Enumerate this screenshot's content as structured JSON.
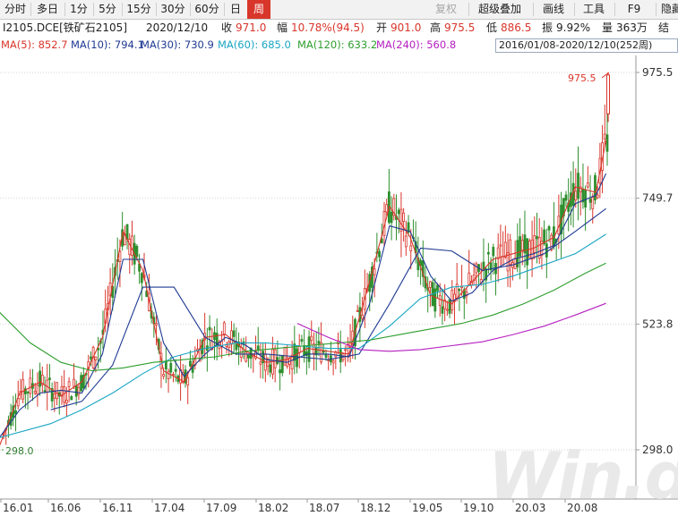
{
  "toolbar": {
    "items": [
      {
        "label": "分时",
        "active": false,
        "disabled": false
      },
      {
        "label": "多日",
        "active": false,
        "disabled": false
      },
      {
        "label": "1分",
        "active": false,
        "disabled": false
      },
      {
        "label": "5分",
        "active": false,
        "disabled": false
      },
      {
        "label": "15分",
        "active": false,
        "disabled": false
      },
      {
        "label": "30分",
        "active": false,
        "disabled": false
      },
      {
        "label": "60分",
        "active": false,
        "disabled": false
      },
      {
        "label": "日",
        "active": false,
        "disabled": false
      },
      {
        "label": "周",
        "active": true,
        "disabled": false
      }
    ],
    "right_items": [
      {
        "label": "复权",
        "disabled": true
      },
      {
        "label": "超级叠加",
        "disabled": false
      },
      {
        "label": "画线",
        "disabled": false
      },
      {
        "label": "工具",
        "disabled": false
      },
      {
        "label": "F9",
        "disabled": false
      },
      {
        "label": "隐藏",
        "disabled": false
      }
    ]
  },
  "info": {
    "symbol": "I2105.DCE[铁矿石2105]",
    "date": "2020/12/10",
    "close_label": "收",
    "close": "971.0",
    "change_label": "幅",
    "change": "10.78%(94.5)",
    "open_label": "开",
    "open": "901.0",
    "high_label": "高",
    "high": "975.5",
    "low_label": "低",
    "low": "886.5",
    "amp_label": "振",
    "amp": "9.92%",
    "vol_label": "量",
    "vol": "363万",
    "tail": "结"
  },
  "range_label": "2016/01/08-2020/12/10(252周)",
  "ma": [
    {
      "text": "MA(5): 852.7",
      "color": "#d9362b"
    },
    {
      "text": "MA(10): 794.1",
      "color": "#1f3a93"
    },
    {
      "text": "MA(30): 730.9",
      "color": "#1f3a93"
    },
    {
      "text": "MA(60): 685.0",
      "color": "#1aa6c4"
    },
    {
      "text": "MA(120): 633.2",
      "color": "#2e9e2e"
    },
    {
      "text": "MA(240): 560.8",
      "color": "#b51fc0"
    }
  ],
  "watermark": "Win.d",
  "chart_data": {
    "type": "line",
    "title": "",
    "xlabel": "",
    "ylabel": "",
    "grid": true,
    "x_ticks": [
      "16.01",
      "16.06",
      "16.11",
      "17.04",
      "17.09",
      "18.02",
      "18.07",
      "18.12",
      "19.05",
      "19.10",
      "20.03",
      "20.08"
    ],
    "y_ticks": [
      975.5,
      749.7,
      523.8,
      298.0
    ],
    "ylim": [
      298.0,
      975.5
    ],
    "annotations": [
      {
        "text": "975.5",
        "kind": "max",
        "x": "2020-12-10",
        "y": 975.5
      },
      {
        "text": "298.0",
        "kind": "min",
        "x": "2016-01-08",
        "y": 298.0
      }
    ],
    "series": [
      {
        "name": "MA(5)",
        "color": "#d9362b",
        "x": [
          "2016-01",
          "2016-03",
          "2016-05",
          "2016-07",
          "2016-09",
          "2016-11",
          "2017-01",
          "2017-03",
          "2017-05",
          "2017-07",
          "2017-09",
          "2017-11",
          "2018-01",
          "2018-03",
          "2018-05",
          "2018-07",
          "2018-09",
          "2018-11",
          "2019-01",
          "2019-03",
          "2019-05",
          "2019-07",
          "2019-09",
          "2019-11",
          "2020-01",
          "2020-03",
          "2020-05",
          "2020-07",
          "2020-09",
          "2020-11",
          "2020-12"
        ],
        "values": [
          305,
          400,
          420,
          395,
          420,
          500,
          690,
          620,
          440,
          420,
          500,
          505,
          475,
          455,
          460,
          480,
          475,
          470,
          600,
          735,
          680,
          575,
          560,
          600,
          640,
          650,
          660,
          680,
          770,
          760,
          853
        ]
      },
      {
        "name": "MA(10)",
        "color": "#1f3a93",
        "x": [
          "2016-01",
          "2016-03",
          "2016-05",
          "2016-07",
          "2016-09",
          "2016-11",
          "2017-01",
          "2017-03",
          "2017-05",
          "2017-07",
          "2017-09",
          "2017-11",
          "2018-01",
          "2018-03",
          "2018-05",
          "2018-07",
          "2018-09",
          "2018-11",
          "2019-01",
          "2019-03",
          "2019-05",
          "2019-07",
          "2019-09",
          "2019-11",
          "2020-01",
          "2020-03",
          "2020-05",
          "2020-07",
          "2020-09",
          "2020-11",
          "2020-12"
        ],
        "values": [
          320,
          370,
          400,
          405,
          400,
          470,
          640,
          640,
          490,
          430,
          470,
          500,
          485,
          460,
          455,
          470,
          470,
          465,
          560,
          700,
          690,
          610,
          565,
          580,
          620,
          640,
          650,
          665,
          740,
          755,
          794
        ]
      },
      {
        "name": "MA(30)",
        "color": "#1f3a93",
        "x": [
          "2016-06",
          "2016-09",
          "2016-12",
          "2017-03",
          "2017-06",
          "2017-09",
          "2017-12",
          "2018-03",
          "2018-06",
          "2018-09",
          "2018-12",
          "2019-03",
          "2019-06",
          "2019-09",
          "2019-12",
          "2020-03",
          "2020-06",
          "2020-09",
          "2020-12"
        ],
        "values": [
          370,
          385,
          450,
          590,
          590,
          500,
          470,
          470,
          465,
          460,
          470,
          560,
          660,
          655,
          620,
          630,
          650,
          690,
          731
        ]
      },
      {
        "name": "MA(60)",
        "color": "#1aa6c4",
        "x": [
          "2016-01",
          "2016-06",
          "2016-09",
          "2016-12",
          "2017-03",
          "2017-06",
          "2017-09",
          "2017-12",
          "2018-03",
          "2018-06",
          "2018-09",
          "2018-12",
          "2019-03",
          "2019-06",
          "2019-09",
          "2019-12",
          "2020-03",
          "2020-06",
          "2020-09",
          "2020-12"
        ],
        "values": [
          320,
          345,
          370,
          400,
          435,
          465,
          480,
          490,
          490,
          485,
          480,
          480,
          520,
          570,
          590,
          595,
          610,
          630,
          650,
          685
        ]
      },
      {
        "name": "MA(120)",
        "color": "#2e9e2e",
        "x": [
          "2016-01",
          "2016-04",
          "2016-07",
          "2016-10",
          "2017-01",
          "2017-04",
          "2017-07",
          "2017-10",
          "2018-01",
          "2018-04",
          "2018-07",
          "2018-10",
          "2019-01",
          "2019-04",
          "2019-07",
          "2019-10",
          "2020-01",
          "2020-04",
          "2020-07",
          "2020-10",
          "2020-12"
        ],
        "values": [
          545,
          490,
          455,
          440,
          445,
          455,
          460,
          465,
          475,
          480,
          485,
          490,
          495,
          505,
          515,
          525,
          540,
          560,
          585,
          615,
          633
        ]
      },
      {
        "name": "MA(240)",
        "color": "#b51fc0",
        "x": [
          "2018-06",
          "2018-09",
          "2018-12",
          "2019-03",
          "2019-06",
          "2019-09",
          "2019-12",
          "2020-03",
          "2020-06",
          "2020-09",
          "2020-12"
        ],
        "values": [
          525,
          500,
          478,
          475,
          478,
          485,
          492,
          505,
          520,
          540,
          561
        ]
      }
    ]
  }
}
